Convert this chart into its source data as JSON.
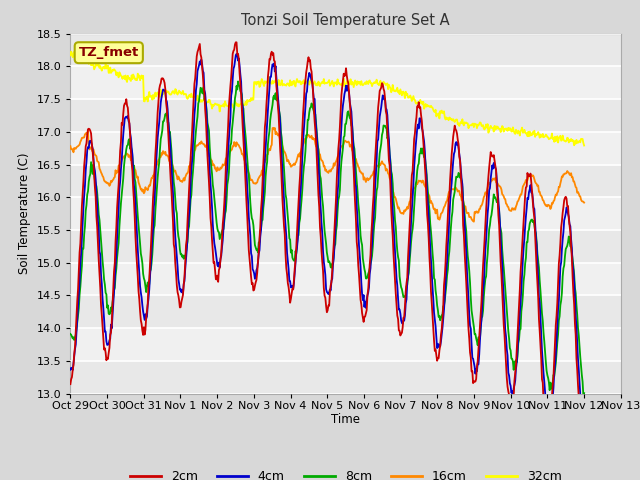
{
  "title": "Tonzi Soil Temperature Set A",
  "xlabel": "Time",
  "ylabel": "Soil Temperature (C)",
  "ylim": [
    13.0,
    18.5
  ],
  "yticks": [
    13.0,
    13.5,
    14.0,
    14.5,
    15.0,
    15.5,
    16.0,
    16.5,
    17.0,
    17.5,
    18.0,
    18.5
  ],
  "xtick_labels": [
    "Oct 29",
    "Oct 30",
    "Oct 31",
    "Nov 1",
    "Nov 2",
    "Nov 3",
    "Nov 4",
    "Nov 5",
    "Nov 6",
    "Nov 7",
    "Nov 8",
    "Nov 9",
    "Nov 10",
    "Nov 11",
    "Nov 12",
    "Nov 13"
  ],
  "series_colors": {
    "2cm": "#cc0000",
    "4cm": "#0000cc",
    "8cm": "#00aa00",
    "16cm": "#ff8800",
    "32cm": "#ffff00"
  },
  "annotation_text": "TZ_fmet",
  "annotation_bg": "#ffff99",
  "annotation_fg": "#880000",
  "annotation_border": "#aaaa00",
  "fig_bg": "#d8d8d8",
  "plot_bg": "#f0f0f0",
  "grid_color": "#ffffff",
  "n_points": 672
}
